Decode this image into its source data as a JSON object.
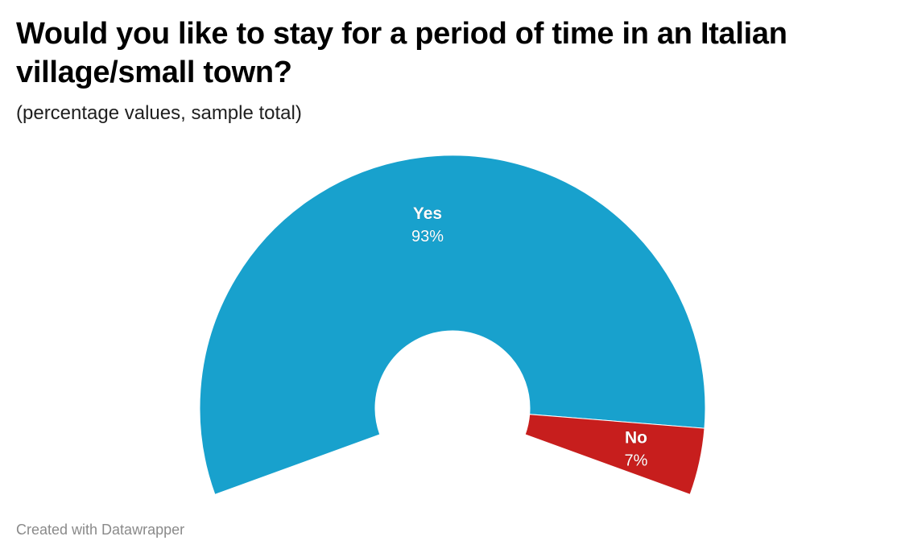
{
  "header": {
    "title": "Would you like to stay for a period of time in an Italian village/small town?",
    "subtitle": "(percentage values, sample total)"
  },
  "chart_data": {
    "type": "pie",
    "variant": "half-donut",
    "title": "Would you like to stay for a period of time in an Italian village/small town?",
    "subtitle": "(percentage values, sample total)",
    "unit": "%",
    "slices": [
      {
        "label": "Yes",
        "value": 93,
        "value_label": "93%",
        "color": "#18a1cd"
      },
      {
        "label": "No",
        "value": 7,
        "value_label": "7%",
        "color": "#c71e1d"
      }
    ]
  },
  "footer": {
    "credit": "Created with Datawrapper"
  },
  "colors": {
    "yes": "#18a1cd",
    "no": "#c71e1d",
    "title_text": "#000000",
    "credit_text": "#8a8a8a"
  }
}
